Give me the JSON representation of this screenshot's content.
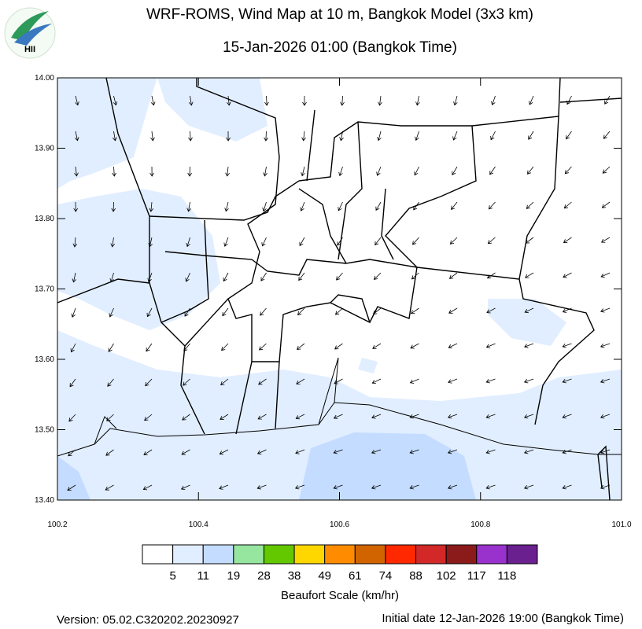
{
  "title": "WRF-ROMS, Wind Map at 10 m, Bangkok Model (3x3 km)",
  "subtitle": "15-Jan-2026 01:00 (Bangkok Time)",
  "logo": "HII",
  "map": {
    "xlim": [
      100.2,
      101.0
    ],
    "ylim": [
      13.4,
      14.0
    ],
    "xticks": [
      {
        "value": 100.2,
        "label": "100.2"
      },
      {
        "value": 100.4,
        "label": "100.4"
      },
      {
        "value": 100.6,
        "label": "100.6"
      },
      {
        "value": 100.8,
        "label": "100.8"
      },
      {
        "value": 101.0,
        "label": "101.0"
      }
    ],
    "yticks": [
      {
        "value": 13.4,
        "label": "13.40"
      },
      {
        "value": 13.5,
        "label": "13.50"
      },
      {
        "value": 13.6,
        "label": "13.60"
      },
      {
        "value": 13.7,
        "label": "13.70"
      },
      {
        "value": 13.8,
        "label": "13.80"
      },
      {
        "value": 13.9,
        "label": "13.90"
      },
      {
        "value": 14.0,
        "label": "14.00"
      }
    ]
  },
  "colorbar": {
    "title": "Beaufort Scale (km/hr)",
    "colors": [
      "#ffffff",
      "#e1eeff",
      "#c4dcff",
      "#96e6a0",
      "#64c800",
      "#ffd700",
      "#ff8c00",
      "#d26400",
      "#ff2800",
      "#d22828",
      "#8b1a1a",
      "#9932cc",
      "#6b2090"
    ],
    "labels": [
      5,
      11,
      19,
      28,
      38,
      49,
      61,
      74,
      88,
      102,
      117,
      118
    ]
  },
  "footer": {
    "version": "Version: 05.02.C320202.20230927",
    "initial": "Initial date 12-Jan-2026 19:00 (Bangkok Time)"
  }
}
